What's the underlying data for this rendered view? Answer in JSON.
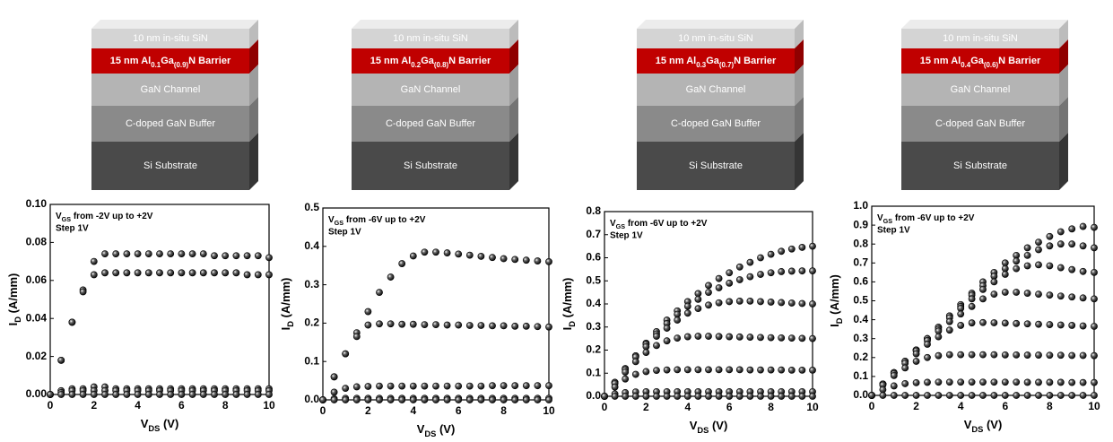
{
  "stacks": [
    {
      "layers": [
        "10 nm in-situ SiN",
        [
          "15 nm Al",
          "0.1",
          "Ga",
          "(0.9)",
          "N Barrier"
        ],
        "GaN Channel",
        "C-doped GaN Buffer",
        "Si Substrate"
      ]
    },
    {
      "layers": [
        "10 nm in-situ SiN",
        [
          "15 nm Al",
          "0.2",
          "Ga",
          "(0.8)",
          "N Barrier"
        ],
        "GaN Channel",
        "C-doped GaN Buffer",
        "Si Substrate"
      ]
    },
    {
      "layers": [
        "10 nm in-situ SiN",
        [
          "15 nm Al",
          "0.3",
          "Ga",
          "(0.7)",
          "N Barrier"
        ],
        "GaN Channel",
        "C-doped GaN Buffer",
        "Si Substrate"
      ]
    },
    {
      "layers": [
        "10 nm in-situ SiN",
        [
          "15 nm Al",
          "0.4",
          "Ga",
          "(0.6)",
          "N Barrier"
        ],
        "GaN Channel",
        "C-doped GaN Buffer",
        "Si Substrate"
      ]
    }
  ],
  "chart_data": [
    {
      "type": "scatter",
      "x_label": [
        "V",
        "DS",
        " (V)"
      ],
      "y_label": [
        "I",
        "D",
        " (A/mm)"
      ],
      "note": [
        "V",
        "GS",
        " from -2V up to +2V"
      ],
      "step": "Step 1V",
      "xlim": [
        0,
        10
      ],
      "xticks": [
        0,
        2,
        4,
        6,
        8,
        10
      ],
      "ylim": [
        0,
        0.1
      ],
      "yticks": [
        {
          "value": 0,
          "label": "0.00"
        },
        0.02,
        0.04,
        0.06,
        0.08,
        {
          "value": 0.1,
          "label": "0.10"
        }
      ],
      "x": [
        0,
        0.5,
        1,
        1.5,
        2,
        2.5,
        3,
        3.5,
        4,
        4.5,
        5,
        5.5,
        6,
        6.5,
        7,
        7.5,
        8,
        8.5,
        9,
        9.5,
        10
      ],
      "series": [
        {
          "color": "#000000",
          "values": [
            0,
            0.018,
            0.038,
            0.055,
            0.07,
            0.074,
            0.074,
            0.074,
            0.074,
            0.074,
            0.074,
            0.074,
            0.074,
            0.074,
            0.074,
            0.073,
            0.073,
            0.073,
            0.073,
            0.073,
            0.072
          ]
        },
        {
          "color": "#000000",
          "values": [
            0,
            0.018,
            0.038,
            0.054,
            0.063,
            0.064,
            0.064,
            0.064,
            0.064,
            0.064,
            0.064,
            0.064,
            0.064,
            0.064,
            0.064,
            0.064,
            0.064,
            0.064,
            0.063,
            0.063,
            0.063
          ]
        },
        {
          "color": "#000000",
          "values": [
            0,
            0.002,
            0.003,
            0.003,
            0.004,
            0.004,
            0.003,
            0.003,
            0.003,
            0.003,
            0.003,
            0.003,
            0.003,
            0.003,
            0.003,
            0.003,
            0.003,
            0.003,
            0.003,
            0.003,
            0.003
          ]
        },
        {
          "color": "#000000",
          "values": [
            0,
            0.001,
            0.002,
            0.002,
            0.002,
            0.002,
            0.002,
            0.002,
            0.002,
            0.002,
            0.002,
            0.002,
            0.002,
            0.002,
            0.002,
            0.002,
            0.002,
            0.002,
            0.002,
            0.002,
            0.002
          ]
        },
        {
          "color": "#000000",
          "values": [
            0,
            0,
            0,
            0,
            0,
            0,
            0,
            0,
            0,
            0,
            0,
            0,
            0,
            0,
            0,
            0,
            0,
            0,
            0,
            0,
            0
          ]
        }
      ]
    },
    {
      "type": "scatter",
      "x_label": [
        "V",
        "DS",
        " (V)"
      ],
      "y_label": [
        "I",
        "D",
        " (A/mm)"
      ],
      "note": [
        "V",
        "GS",
        " from -6V up to +2V"
      ],
      "step": "Step 1V",
      "xlim": [
        0,
        10
      ],
      "xticks": [
        0,
        2,
        4,
        6,
        8,
        10
      ],
      "ylim": [
        0,
        0.5
      ],
      "yticks": [
        {
          "value": 0,
          "label": "0.0"
        },
        0.1,
        0.2,
        0.3,
        0.4,
        0.5
      ],
      "x": [
        0,
        0.5,
        1,
        1.5,
        2,
        2.5,
        3,
        3.5,
        4,
        4.5,
        5,
        5.5,
        6,
        6.5,
        7,
        7.5,
        8,
        8.5,
        9,
        9.5,
        10
      ],
      "series": [
        {
          "color": "#000000",
          "values": [
            0,
            0.06,
            0.12,
            0.175,
            0.23,
            0.28,
            0.32,
            0.355,
            0.375,
            0.385,
            0.385,
            0.383,
            0.38,
            0.377,
            0.374,
            0.371,
            0.368,
            0.366,
            0.364,
            0.362,
            0.36
          ]
        },
        {
          "color": "#000000",
          "values": [
            0,
            0.06,
            0.12,
            0.165,
            0.195,
            0.198,
            0.198,
            0.197,
            0.197,
            0.196,
            0.196,
            0.195,
            0.195,
            0.194,
            0.194,
            0.193,
            0.193,
            0.192,
            0.192,
            0.191,
            0.19
          ]
        },
        {
          "color": "#000000",
          "values": [
            0,
            0.02,
            0.03,
            0.034,
            0.035,
            0.036,
            0.036,
            0.036,
            0.036,
            0.036,
            0.036,
            0.036,
            0.036,
            0.036,
            0.036,
            0.037,
            0.037,
            0.037,
            0.037,
            0.037,
            0.037
          ]
        },
        {
          "color": "#000000",
          "values": [
            0,
            0.003,
            0.004,
            0.004,
            0.004,
            0.004,
            0.004,
            0.004,
            0.004,
            0.004,
            0.004,
            0.004,
            0.004,
            0.004,
            0.004,
            0.004,
            0.004,
            0.004,
            0.004,
            0.004,
            0.004
          ]
        },
        {
          "color": "#000000",
          "values": [
            0,
            0,
            0,
            0,
            0,
            0,
            0,
            0,
            0,
            0,
            0,
            0,
            0,
            0,
            0,
            0,
            0,
            0,
            0,
            0,
            0
          ]
        }
      ]
    },
    {
      "type": "scatter",
      "x_label": [
        "V",
        "DS",
        " (V)"
      ],
      "y_label": [
        "I",
        "D",
        " (A/mm)"
      ],
      "note": [
        "V",
        "GS",
        " from -6V up to +2V"
      ],
      "step": "Step 1V",
      "xlim": [
        0,
        10
      ],
      "xticks": [
        0,
        2,
        4,
        6,
        8,
        10
      ],
      "ylim": [
        0,
        0.8
      ],
      "yticks": [
        {
          "value": 0,
          "label": "0.0"
        },
        0.1,
        0.2,
        0.3,
        0.4,
        0.5,
        0.6,
        0.7,
        0.8
      ],
      "x": [
        0,
        0.5,
        1,
        1.5,
        2,
        2.5,
        3,
        3.5,
        4,
        4.5,
        5,
        5.5,
        6,
        6.5,
        7,
        7.5,
        8,
        8.5,
        9,
        9.5,
        10
      ],
      "series": [
        {
          "color": "#000000",
          "values": [
            0,
            0.06,
            0.12,
            0.175,
            0.23,
            0.28,
            0.33,
            0.37,
            0.41,
            0.445,
            0.48,
            0.51,
            0.535,
            0.56,
            0.58,
            0.6,
            0.615,
            0.628,
            0.638,
            0.645,
            0.65
          ]
        },
        {
          "color": "#000000",
          "values": [
            0,
            0.06,
            0.12,
            0.175,
            0.225,
            0.27,
            0.315,
            0.355,
            0.39,
            0.42,
            0.45,
            0.47,
            0.49,
            0.505,
            0.518,
            0.528,
            0.535,
            0.54,
            0.542,
            0.543,
            0.543
          ]
        },
        {
          "color": "#000000",
          "values": [
            0,
            0.06,
            0.115,
            0.17,
            0.215,
            0.26,
            0.295,
            0.33,
            0.36,
            0.38,
            0.395,
            0.405,
            0.41,
            0.412,
            0.412,
            0.41,
            0.408,
            0.406,
            0.404,
            0.402,
            0.4
          ]
        },
        {
          "color": "#000000",
          "values": [
            0,
            0.055,
            0.105,
            0.15,
            0.19,
            0.22,
            0.24,
            0.252,
            0.258,
            0.26,
            0.26,
            0.259,
            0.258,
            0.257,
            0.256,
            0.255,
            0.254,
            0.253,
            0.252,
            0.251,
            0.25
          ]
        },
        {
          "color": "#000000",
          "values": [
            0,
            0.04,
            0.075,
            0.095,
            0.107,
            0.112,
            0.114,
            0.115,
            0.115,
            0.115,
            0.115,
            0.115,
            0.115,
            0.115,
            0.114,
            0.114,
            0.114,
            0.114,
            0.113,
            0.113,
            0.113
          ]
        },
        {
          "color": "#000000",
          "values": [
            0,
            0.01,
            0.016,
            0.019,
            0.02,
            0.02,
            0.02,
            0.02,
            0.02,
            0.02,
            0.02,
            0.02,
            0.02,
            0.02,
            0.02,
            0.02,
            0.02,
            0.02,
            0.02,
            0.02,
            0.02
          ]
        },
        {
          "color": "#000000",
          "values": [
            0,
            0,
            0,
            0,
            0,
            0,
            0,
            0,
            0,
            0,
            0,
            0,
            0,
            0,
            0,
            0,
            0,
            0,
            0,
            0,
            0
          ]
        }
      ]
    },
    {
      "type": "scatter",
      "x_label": [
        "V",
        "DS",
        " (V)"
      ],
      "y_label": [
        "I",
        "D",
        " (A/mm)"
      ],
      "note": [
        "V",
        "GS",
        " from -6V up to +2V"
      ],
      "step": "Step 1V",
      "xlim": [
        0,
        10
      ],
      "xticks": [
        0,
        2,
        4,
        6,
        8,
        10
      ],
      "ylim": [
        0,
        1
      ],
      "yticks": [
        {
          "value": 0,
          "label": "0.0"
        },
        0.1,
        0.2,
        0.3,
        0.4,
        0.5,
        0.6,
        0.7,
        0.8,
        0.9,
        {
          "value": 1,
          "label": "1.0"
        }
      ],
      "x": [
        0,
        0.5,
        1,
        1.5,
        2,
        2.5,
        3,
        3.5,
        4,
        4.5,
        5,
        5.5,
        6,
        6.5,
        7,
        7.5,
        8,
        8.5,
        9,
        9.5,
        10
      ],
      "series": [
        {
          "color": "#000000",
          "values": [
            0,
            0.06,
            0.12,
            0.18,
            0.24,
            0.3,
            0.36,
            0.42,
            0.48,
            0.54,
            0.6,
            0.65,
            0.7,
            0.74,
            0.78,
            0.81,
            0.84,
            0.865,
            0.88,
            0.893,
            0.888
          ]
        },
        {
          "color": "#000000",
          "values": [
            0,
            0.06,
            0.12,
            0.18,
            0.24,
            0.3,
            0.36,
            0.42,
            0.47,
            0.53,
            0.58,
            0.63,
            0.67,
            0.71,
            0.74,
            0.77,
            0.79,
            0.8,
            0.8,
            0.79,
            0.78
          ]
        },
        {
          "color": "#000000",
          "values": [
            0,
            0.06,
            0.12,
            0.18,
            0.24,
            0.3,
            0.35,
            0.41,
            0.46,
            0.51,
            0.56,
            0.6,
            0.64,
            0.67,
            0.685,
            0.69,
            0.685,
            0.675,
            0.665,
            0.655,
            0.65
          ]
        },
        {
          "color": "#000000",
          "values": [
            0,
            0.06,
            0.12,
            0.18,
            0.235,
            0.29,
            0.34,
            0.39,
            0.43,
            0.47,
            0.51,
            0.535,
            0.545,
            0.545,
            0.54,
            0.535,
            0.53,
            0.525,
            0.52,
            0.515,
            0.51
          ]
        },
        {
          "color": "#000000",
          "values": [
            0,
            0.06,
            0.115,
            0.17,
            0.22,
            0.27,
            0.31,
            0.345,
            0.37,
            0.383,
            0.385,
            0.384,
            0.382,
            0.38,
            0.378,
            0.376,
            0.374,
            0.372,
            0.37,
            0.367,
            0.365
          ]
        },
        {
          "color": "#000000",
          "values": [
            0,
            0.055,
            0.105,
            0.145,
            0.18,
            0.2,
            0.21,
            0.215,
            0.215,
            0.215,
            0.215,
            0.215,
            0.214,
            0.214,
            0.213,
            0.213,
            0.212,
            0.212,
            0.211,
            0.211,
            0.21
          ]
        },
        {
          "color": "#000000",
          "values": [
            0,
            0.03,
            0.05,
            0.062,
            0.067,
            0.069,
            0.07,
            0.07,
            0.07,
            0.07,
            0.07,
            0.07,
            0.07,
            0.07,
            0.069,
            0.069,
            0.069,
            0.069,
            0.068,
            0.068,
            0.068
          ]
        },
        {
          "color": "#000000",
          "values": [
            0,
            0,
            0,
            0,
            0,
            0,
            0,
            0,
            0,
            0,
            0,
            0,
            0,
            0,
            0,
            0,
            0,
            0,
            0,
            0,
            0
          ]
        }
      ]
    }
  ]
}
